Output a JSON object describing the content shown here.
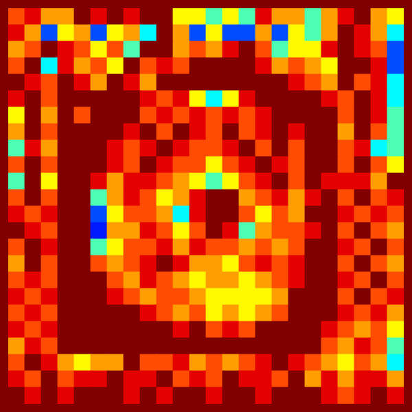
{
  "chart_data": {
    "type": "heatmap",
    "grid": false,
    "tick_labels": false,
    "zlim": [
      0,
      1
    ],
    "cells": [
      [
        0.8,
        0.9,
        0.72,
        0.72,
        1,
        0.9,
        1,
        0.9,
        1,
        1,
        0.63,
        0.63,
        0.45,
        0.63,
        0.45,
        0.9,
        0.72,
        0.72,
        0.45,
        0.72,
        0.9,
        1,
        0.72,
        0.63
      ],
      [
        0.9,
        0.72,
        0.2,
        0.63,
        0.72,
        0.2,
        0.63,
        0.72,
        0.37,
        1,
        0.72,
        0.2,
        0.63,
        0.2,
        0.2,
        0.72,
        0.2,
        0.63,
        0.45,
        0.72,
        1,
        0.9,
        0.72,
        0.37
      ],
      [
        0.72,
        0.8,
        1,
        0.9,
        0.8,
        0.63,
        0.8,
        0.45,
        1,
        1,
        0.72,
        0.8,
        0.72,
        0.9,
        1,
        0.8,
        0.45,
        0.63,
        0.63,
        0.9,
        1,
        0.9,
        0.8,
        0.2
      ],
      [
        0.8,
        1,
        0.37,
        0.9,
        0.72,
        0.8,
        0.63,
        1,
        0.8,
        0.9,
        0.8,
        1,
        1,
        1,
        1,
        0.9,
        0.72,
        0.8,
        0.72,
        0.63,
        1,
        1,
        0.9,
        0.2
      ],
      [
        1,
        0.9,
        0.8,
        1,
        0.9,
        0.72,
        1,
        0.9,
        0.72,
        1,
        1,
        1,
        1,
        1,
        1,
        1,
        1,
        0.9,
        0.8,
        0.72,
        1,
        0.8,
        0.9,
        0.37
      ],
      [
        0.9,
        1,
        0.8,
        1,
        1,
        1,
        1,
        1,
        0.9,
        0.8,
        0.9,
        0.63,
        0.37,
        0.63,
        0.9,
        1,
        1,
        1,
        1,
        0.9,
        0.8,
        1,
        0.9,
        0.37
      ],
      [
        0.63,
        1,
        0.72,
        1,
        0.8,
        1,
        1,
        1,
        0.8,
        0.9,
        0.8,
        0.9,
        0.8,
        0.9,
        0.8,
        0.9,
        1,
        1,
        1,
        1,
        0.8,
        1,
        0.9,
        0.45
      ],
      [
        0.72,
        1,
        0.8,
        1,
        1,
        1,
        1,
        0.9,
        1,
        0.8,
        1,
        0.9,
        0.8,
        1,
        0.8,
        0.9,
        1,
        0.9,
        1,
        1,
        0.72,
        1,
        0.8,
        0.45
      ],
      [
        0.45,
        0.9,
        0.72,
        1,
        1,
        1,
        0.9,
        0.8,
        0.9,
        1,
        0.9,
        0.8,
        0.8,
        0.9,
        1,
        0.8,
        1,
        0.8,
        1,
        1,
        0.8,
        0.9,
        0.37,
        0.45
      ],
      [
        0.8,
        1,
        0.8,
        1,
        1,
        1,
        0.9,
        0.8,
        1,
        0.9,
        0.8,
        0.8,
        0.63,
        0.8,
        0.9,
        1,
        0.9,
        0.8,
        1,
        1,
        0.8,
        1,
        0.8,
        0.63
      ],
      [
        0.45,
        1,
        0.63,
        1,
        1,
        0.9,
        0.72,
        0.9,
        0.9,
        0.8,
        0.72,
        0.63,
        0.45,
        0.63,
        0.8,
        0.9,
        1,
        0.8,
        1,
        0.9,
        0.9,
        0.9,
        0.72,
        1
      ],
      [
        0.8,
        1,
        0.8,
        1,
        1,
        0.45,
        0.72,
        0.9,
        0.8,
        0.63,
        0.72,
        0.9,
        1,
        1,
        0.72,
        0.8,
        0.9,
        0.72,
        0.9,
        1,
        0.8,
        1,
        0.8,
        0.9
      ],
      [
        0.9,
        0.8,
        0.9,
        1,
        1,
        0.2,
        0.63,
        0.8,
        0.8,
        0.72,
        0.37,
        0.9,
        1,
        1,
        0.8,
        0.63,
        0.8,
        0.72,
        1,
        1,
        0.9,
        0.8,
        0.9,
        0.8
      ],
      [
        1,
        0.9,
        0.8,
        1,
        1,
        0.15,
        0.72,
        0.72,
        0.9,
        0.8,
        0.63,
        0.8,
        1,
        0.9,
        0.45,
        0.72,
        0.8,
        0.8,
        0.9,
        1,
        0.8,
        1,
        0.8,
        0.72
      ],
      [
        0.8,
        1,
        0.9,
        1,
        1,
        0.45,
        0.63,
        0.8,
        0.8,
        0.9,
        0.72,
        0.9,
        0.8,
        0.8,
        0.72,
        0.8,
        0.72,
        0.8,
        1,
        1,
        0.9,
        0.8,
        1,
        0.8
      ],
      [
        0.72,
        1,
        0.8,
        1,
        1,
        0.8,
        0.72,
        0.8,
        0.9,
        1,
        0.9,
        0.72,
        0.72,
        0.63,
        0.8,
        0.9,
        0.8,
        0.9,
        1,
        1,
        0.8,
        1,
        0.8,
        0.72
      ],
      [
        0.8,
        0.9,
        0.8,
        1,
        1,
        1,
        0.8,
        0.72,
        0.9,
        0.8,
        0.72,
        0.63,
        0.72,
        0.72,
        0.63,
        0.72,
        0.8,
        0.9,
        1,
        1,
        0.9,
        0.8,
        1,
        0.8
      ],
      [
        0.9,
        0.8,
        0.9,
        1,
        1,
        1,
        0.9,
        0.8,
        0.72,
        0.8,
        0.8,
        0.72,
        0.63,
        0.63,
        0.63,
        0.63,
        0.72,
        1,
        1,
        1,
        0.8,
        1,
        0.8,
        0.9
      ],
      [
        0.8,
        0.9,
        0.8,
        1,
        1,
        1,
        1,
        1,
        0.9,
        0.8,
        0.72,
        0.8,
        0.63,
        0.72,
        0.63,
        0.72,
        0.8,
        1,
        1,
        1,
        0.9,
        0.8,
        0.9,
        0.72
      ],
      [
        0.9,
        0.8,
        0.9,
        1,
        1,
        1,
        1,
        1,
        1,
        1,
        0.9,
        1,
        0.8,
        0.9,
        0.8,
        1,
        1,
        1,
        1,
        0.9,
        0.8,
        0.72,
        0.8,
        0.63
      ],
      [
        0.72,
        0.9,
        0.8,
        1,
        1,
        1,
        1,
        1,
        1,
        1,
        1,
        1,
        1,
        1,
        1,
        1,
        1,
        1,
        1,
        0.8,
        0.72,
        0.9,
        0.8,
        0.45
      ],
      [
        0.8,
        1,
        0.9,
        0.72,
        0.63,
        0.72,
        0.72,
        1,
        0.8,
        0.8,
        0.9,
        0.72,
        0.8,
        0.72,
        0.8,
        0.9,
        1,
        0.9,
        0.8,
        0.72,
        0.63,
        0.8,
        0.72,
        0.37
      ],
      [
        0.9,
        0.8,
        1,
        0.8,
        0.9,
        0.9,
        1,
        0.9,
        0.9,
        1,
        0.8,
        0.9,
        0.8,
        1,
        0.9,
        0.9,
        0.8,
        1,
        0.72,
        0.9,
        0.72,
        0.9,
        0.9,
        0.72
      ],
      [
        1,
        0.9,
        1,
        0.9,
        1,
        1,
        1,
        0.9,
        1,
        0.9,
        1,
        1,
        0.9,
        1,
        1,
        0.9,
        1,
        1,
        1,
        0.9,
        0.8,
        0.9,
        1,
        0.9
      ]
    ]
  }
}
